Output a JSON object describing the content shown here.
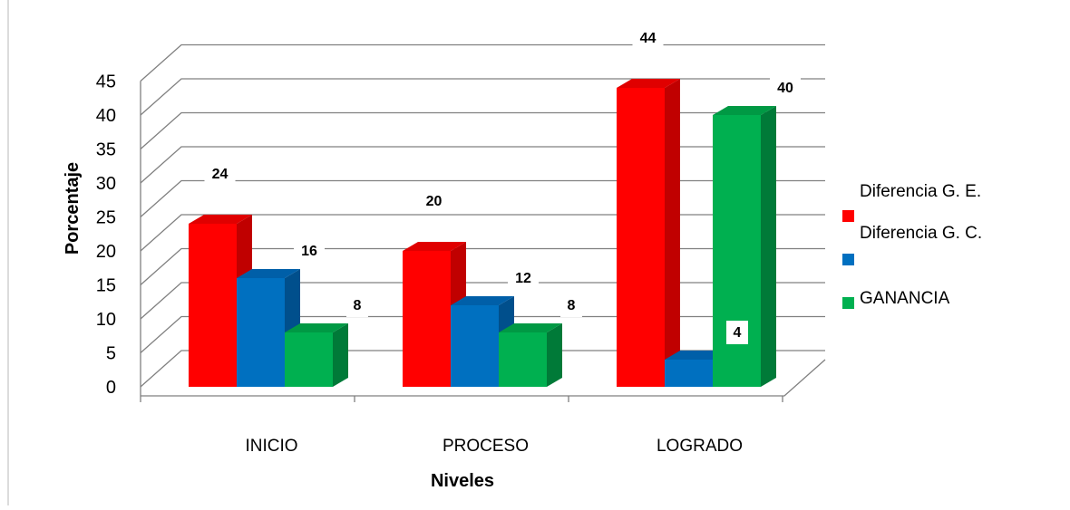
{
  "chart_data": {
    "type": "bar",
    "style": "3d-clustered-column",
    "categories": [
      "INICIO",
      "PROCESO",
      "LOGRADO"
    ],
    "series": [
      {
        "name": "Diferencia G. E.",
        "values": [
          24,
          20,
          44
        ],
        "color": "#ff0000",
        "side": "#c00000",
        "top": "#e00000"
      },
      {
        "name": "Diferencia G. C.",
        "values": [
          16,
          12,
          4
        ],
        "color": "#0070c0",
        "side": "#004f8c",
        "top": "#005fa8"
      },
      {
        "name": "GANANCIA",
        "values": [
          8,
          8,
          40
        ],
        "color": "#00b050",
        "side": "#007a38",
        "top": "#009944"
      }
    ],
    "y_ticks": [
      45,
      40,
      35,
      30,
      25,
      20,
      15,
      10,
      5,
      0
    ],
    "ylim": [
      0,
      45
    ],
    "xlabel": "Niveles",
    "ylabel": "Porcentaje",
    "grid": true,
    "legend": "right"
  }
}
